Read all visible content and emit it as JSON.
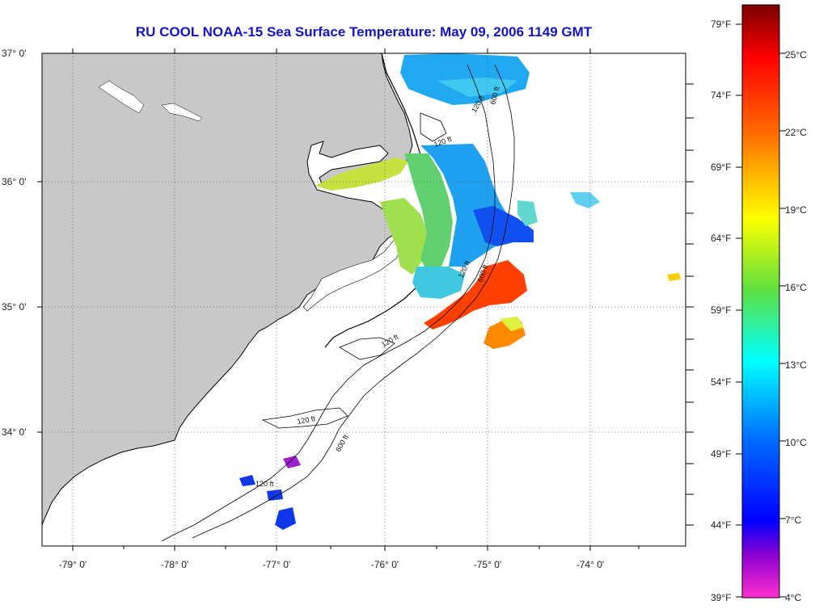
{
  "title": "RU COOL  NOAA-15  Sea Surface Temperature:  May 09, 2006 1149 GMT",
  "latitude_labels": [
    "37° 0'",
    "36° 0'",
    "35° 0'",
    "34° 0'"
  ],
  "longitude_labels": [
    "-79° 0'",
    "-78° 0'",
    "-77° 0'",
    "-76° 0'",
    "-75° 0'",
    "-74° 0'"
  ],
  "contour_labels": [
    "120 ft",
    "600 ft"
  ],
  "colorbar": {
    "fahrenheit_labels": [
      "79°F",
      "74°F",
      "69°F",
      "64°F",
      "59°F",
      "54°F",
      "49°F",
      "44°F",
      "39°F"
    ],
    "celsius_labels": [
      "25°C",
      "22°C",
      "19°C",
      "16°C",
      "13°C",
      "10°C",
      "7°C",
      "4°C"
    ],
    "gradient_stops": [
      "#8b0000",
      "#ff0000",
      "#ff7700",
      "#ffff00",
      "#66e040",
      "#00ffff",
      "#0060ff",
      "#0000ff",
      "#9900cc",
      "#ff33cc"
    ]
  },
  "colors": {
    "land": "#c8c8c8",
    "ocean": "#ffffff",
    "title": "#1414c8"
  }
}
